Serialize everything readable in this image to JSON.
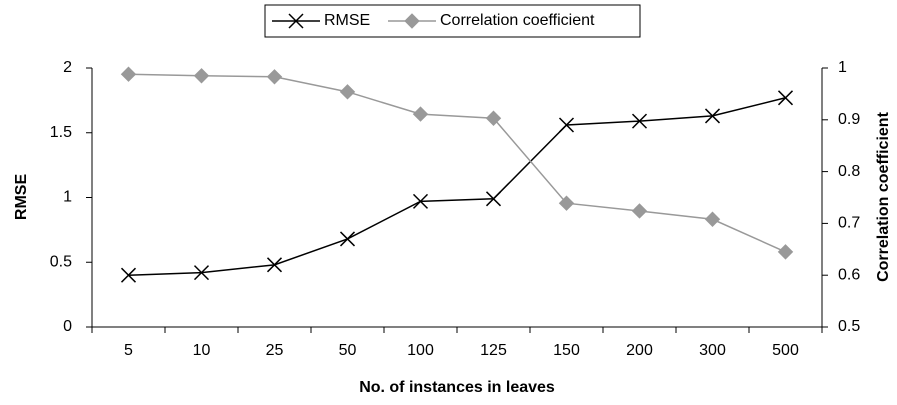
{
  "chart_data": {
    "type": "line",
    "x_label": "No. of instances in leaves",
    "y_label": "RMSE",
    "y2_label": "Correlation coefficient",
    "categories": [
      "5",
      "10",
      "25",
      "50",
      "100",
      "125",
      "150",
      "200",
      "300",
      "500"
    ],
    "series": [
      {
        "name": "RMSE",
        "color": "#000000",
        "marker": "x",
        "values": [
          0.4,
          0.42,
          0.48,
          0.68,
          0.97,
          0.99,
          1.56,
          1.59,
          1.63,
          1.77
        ]
      },
      {
        "name": "Correlation coefficient",
        "color": "#999999",
        "marker": "diamond",
        "axis": "y2",
        "values": [
          0.988,
          0.985,
          0.983,
          0.954,
          0.911,
          0.903,
          0.739,
          0.724,
          0.708,
          0.645
        ]
      }
    ],
    "ylim": [
      0,
      2
    ],
    "yticks": [
      0,
      0.5,
      1,
      1.5,
      2
    ],
    "y2lim": [
      0.5,
      1
    ],
    "y2ticks": [
      0.5,
      0.6,
      0.7,
      0.8,
      0.9,
      1
    ],
    "grid": false,
    "legend": "top"
  }
}
